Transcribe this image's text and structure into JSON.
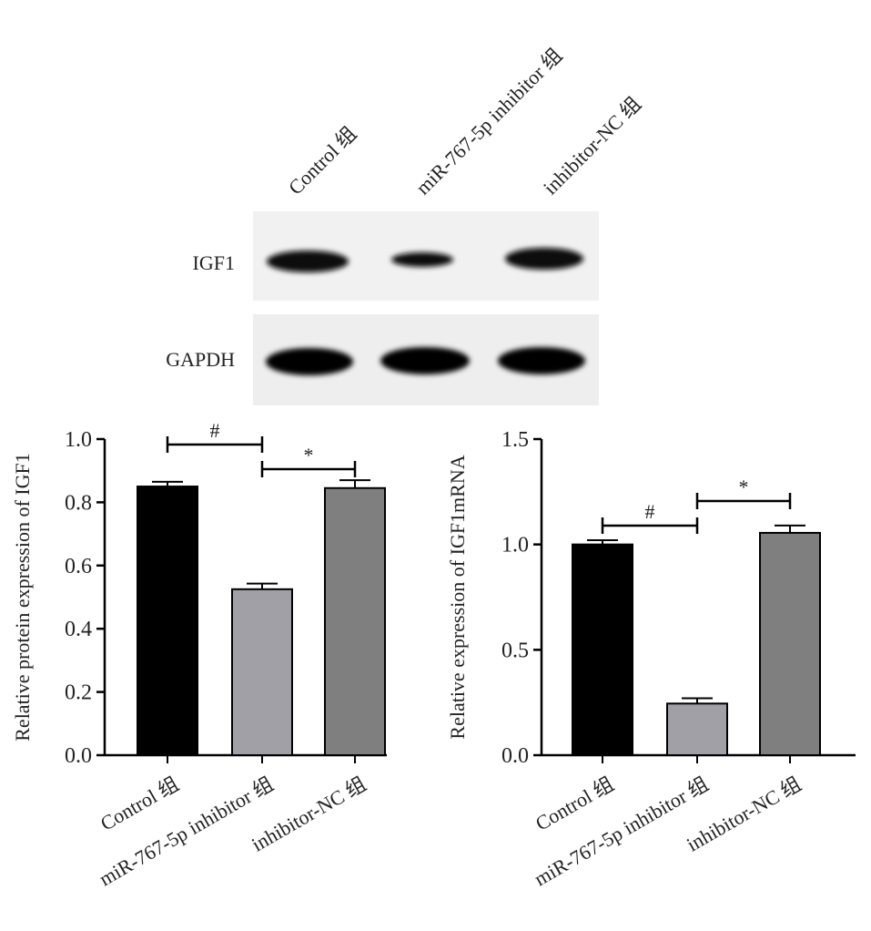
{
  "blot": {
    "lanes": [
      "Control 组",
      "miR-767-5p inhibitor 组",
      "inhibitor-NC 组"
    ],
    "rows": [
      "IGF1",
      "GAPDH"
    ]
  },
  "chart_data": [
    {
      "type": "bar",
      "y_label": "Relative protein expression of IGF1",
      "categories": [
        "Control 组",
        "miR-767-5p inhibitor 组",
        "inhibitor-NC 组"
      ],
      "values": [
        0.85,
        0.525,
        0.845
      ],
      "errors": [
        0.015,
        0.018,
        0.025
      ],
      "colors": [
        "#000000",
        "#a0a0a6",
        "#7f7f7f"
      ],
      "ylim": [
        0,
        1
      ],
      "yticks": [
        {
          "value": 0,
          "label": "0.0"
        },
        {
          "value": 0.2,
          "label": "0.2"
        },
        {
          "value": 0.4,
          "label": "0.4"
        },
        {
          "value": 0.6,
          "label": "0.6"
        },
        {
          "value": 0.8,
          "label": "0.8"
        },
        {
          "value": 1,
          "label": "1.0"
        }
      ],
      "annotations": [
        "#",
        "*"
      ]
    },
    {
      "type": "bar",
      "y_label": "Relative expression of IGF1mRNA",
      "categories": [
        "Control 组",
        "miR-767-5p inhibitor 组",
        "inhibitor-NC 组"
      ],
      "values": [
        1.0,
        0.245,
        1.055
      ],
      "errors": [
        0.02,
        0.025,
        0.035
      ],
      "colors": [
        "#000000",
        "#a0a0a6",
        "#7f7f7f"
      ],
      "ylim": [
        0,
        1.5
      ],
      "yticks": [
        {
          "value": 0,
          "label": "0.0"
        },
        {
          "value": 0.5,
          "label": "0.5"
        },
        {
          "value": 1,
          "label": "1.0"
        },
        {
          "value": 1.5,
          "label": "1.5"
        }
      ],
      "annotations": [
        "#",
        "*"
      ]
    }
  ]
}
